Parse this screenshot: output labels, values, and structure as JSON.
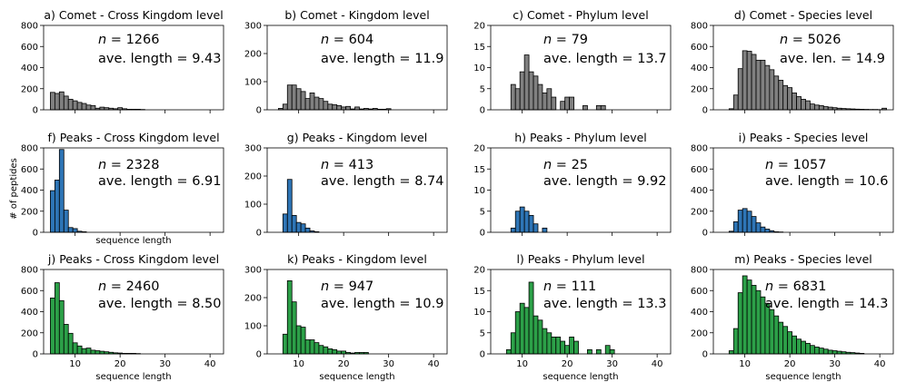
{
  "figure": {
    "ylabel": "# of peptides",
    "colors": {
      "Comet": "#808080",
      "Peaks-blue": "#2e75b6",
      "Peaks-green": "#2ca048",
      "edge": "#000000"
    }
  },
  "chart_data": [
    {
      "type": "bar",
      "title": "a) Comet - Cross Kingdom level",
      "n_label": "n",
      "n_value": "= 1266",
      "len_label": "ave. length = 9.43",
      "xlim": [
        3,
        43
      ],
      "ylim": [
        0,
        800
      ],
      "yticks": [
        0,
        200,
        400,
        600,
        800
      ],
      "xticks": [
        10,
        20,
        30,
        40
      ],
      "show_xticklabels": false,
      "xlabel": "",
      "color": "#808080",
      "x": [
        5,
        6,
        7,
        8,
        9,
        10,
        11,
        12,
        13,
        14,
        15,
        16,
        17,
        18,
        19,
        20,
        21,
        22,
        23,
        24,
        25
      ],
      "values": [
        165,
        155,
        170,
        130,
        100,
        85,
        70,
        60,
        45,
        40,
        15,
        25,
        20,
        15,
        10,
        20,
        10,
        5,
        5,
        5,
        3
      ]
    },
    {
      "type": "bar",
      "title": "b) Comet - Kingdom level",
      "n_label": "n",
      "n_value": "= 604",
      "len_label": "ave. length = 11.9",
      "xlim": [
        3,
        43
      ],
      "ylim": [
        0,
        300
      ],
      "yticks": [
        0,
        100,
        200,
        300
      ],
      "xticks": [
        10,
        20,
        30,
        40
      ],
      "show_xticklabels": false,
      "xlabel": "",
      "color": "#808080",
      "x": [
        6,
        7,
        8,
        9,
        10,
        11,
        12,
        13,
        14,
        15,
        16,
        17,
        18,
        19,
        20,
        21,
        22,
        23,
        24,
        25,
        26,
        27,
        28,
        29,
        30
      ],
      "values": [
        5,
        20,
        88,
        88,
        75,
        65,
        40,
        60,
        45,
        40,
        30,
        20,
        18,
        15,
        10,
        12,
        3,
        10,
        3,
        5,
        3,
        5,
        2,
        2,
        4
      ]
    },
    {
      "type": "bar",
      "title": "c) Comet - Phylum level",
      "n_label": "n",
      "n_value": "= 79",
      "len_label": "ave. length = 13.7",
      "xlim": [
        3,
        43
      ],
      "ylim": [
        0,
        20
      ],
      "yticks": [
        0,
        5,
        10,
        15,
        20
      ],
      "xticks": [
        10,
        20,
        30,
        40
      ],
      "show_xticklabels": false,
      "xlabel": "",
      "color": "#808080",
      "x": [
        8,
        9,
        10,
        11,
        12,
        13,
        14,
        15,
        16,
        17,
        19,
        20,
        21,
        24,
        27,
        28
      ],
      "values": [
        6,
        5,
        9,
        13,
        9,
        8,
        6,
        4,
        5,
        3,
        2,
        3,
        3,
        1,
        1,
        1
      ]
    },
    {
      "type": "bar",
      "title": "d) Comet - Species level",
      "n_label": "n",
      "n_value": "= 5026",
      "len_label": "ave. len. = 14.9",
      "xlim": [
        3,
        43
      ],
      "ylim": [
        0,
        800
      ],
      "yticks": [
        0,
        200,
        400,
        600,
        800
      ],
      "xticks": [
        10,
        20,
        30,
        40
      ],
      "show_xticklabels": false,
      "xlabel": "",
      "color": "#808080",
      "x": [
        7,
        8,
        9,
        10,
        11,
        12,
        13,
        14,
        15,
        16,
        17,
        18,
        19,
        20,
        21,
        22,
        23,
        24,
        25,
        26,
        27,
        28,
        29,
        30,
        31,
        32,
        33,
        34,
        35,
        36,
        37,
        38,
        39,
        40,
        41
      ],
      "values": [
        10,
        140,
        390,
        560,
        555,
        525,
        470,
        470,
        420,
        380,
        320,
        280,
        230,
        210,
        160,
        125,
        100,
        85,
        55,
        45,
        40,
        30,
        25,
        20,
        15,
        12,
        10,
        8,
        6,
        5,
        4,
        3,
        3,
        2,
        15
      ]
    },
    {
      "type": "bar",
      "title": "f) Peaks - Cross Kingdom level",
      "n_label": "n",
      "n_value": "= 2328",
      "len_label": "ave. length = 6.91",
      "xlim": [
        3,
        43
      ],
      "ylim": [
        0,
        800
      ],
      "yticks": [
        0,
        200,
        400,
        600,
        800
      ],
      "xticks": [
        10,
        20,
        30,
        40
      ],
      "show_xticklabels": false,
      "xlabel": "sequence length",
      "color": "#2e75b6",
      "x": [
        5,
        6,
        7,
        8,
        9,
        10,
        11,
        12
      ],
      "values": [
        395,
        495,
        785,
        210,
        45,
        35,
        10,
        5
      ]
    },
    {
      "type": "bar",
      "title": "g) Peaks - Kingdom level",
      "n_label": "n",
      "n_value": "= 413",
      "len_label": "ave. length = 8.74",
      "xlim": [
        3,
        43
      ],
      "ylim": [
        0,
        300
      ],
      "yticks": [
        0,
        100,
        200,
        300
      ],
      "xticks": [
        10,
        20,
        30,
        40
      ],
      "show_xticklabels": false,
      "xlabel": "",
      "color": "#2e75b6",
      "x": [
        7,
        8,
        9,
        10,
        11,
        12,
        13,
        14
      ],
      "values": [
        65,
        188,
        60,
        35,
        30,
        15,
        5,
        2
      ]
    },
    {
      "type": "bar",
      "title": "h) Peaks - Phylum level",
      "n_label": "n",
      "n_value": "= 25",
      "len_label": "ave. length = 9.92",
      "xlim": [
        3,
        43
      ],
      "ylim": [
        0,
        20
      ],
      "yticks": [
        0,
        5,
        10,
        15,
        20
      ],
      "xticks": [
        10,
        20,
        30,
        40
      ],
      "show_xticklabels": false,
      "xlabel": "",
      "color": "#2e75b6",
      "x": [
        8,
        9,
        10,
        11,
        12,
        13,
        15
      ],
      "values": [
        1,
        5,
        6,
        5,
        4,
        2,
        1
      ]
    },
    {
      "type": "bar",
      "title": "i) Peaks - Species level",
      "n_label": "n",
      "n_value": "= 1057",
      "len_label": "ave. length = 10.6",
      "xlim": [
        3,
        43
      ],
      "ylim": [
        0,
        800
      ],
      "yticks": [
        0,
        200,
        400,
        600,
        800
      ],
      "xticks": [
        10,
        20,
        30,
        40
      ],
      "show_xticklabels": false,
      "xlabel": "",
      "color": "#2e75b6",
      "x": [
        7,
        8,
        9,
        10,
        11,
        12,
        13,
        14,
        15,
        16,
        17,
        18
      ],
      "values": [
        10,
        100,
        210,
        225,
        200,
        150,
        90,
        50,
        30,
        15,
        5,
        3
      ]
    },
    {
      "type": "bar",
      "title": "j) Peaks - Cross Kingdom level",
      "n_label": "n",
      "n_value": "= 2460",
      "len_label": "ave. length = 8.50",
      "xlim": [
        3,
        43
      ],
      "ylim": [
        0,
        800
      ],
      "yticks": [
        0,
        200,
        400,
        600,
        800
      ],
      "xticks": [
        10,
        20,
        30,
        40
      ],
      "show_xticklabels": true,
      "xlabel": "sequence length",
      "color": "#2ca048",
      "x": [
        5,
        6,
        7,
        8,
        9,
        10,
        11,
        12,
        13,
        14,
        15,
        16,
        17,
        18,
        19,
        20,
        21,
        22,
        23,
        24
      ],
      "values": [
        530,
        675,
        505,
        280,
        195,
        105,
        75,
        50,
        55,
        35,
        30,
        25,
        20,
        15,
        10,
        8,
        5,
        5,
        5,
        3
      ]
    },
    {
      "type": "bar",
      "title": "k) Peaks - Kingdom level",
      "n_label": "n",
      "n_value": "= 947",
      "len_label": "ave. length = 10.9",
      "xlim": [
        3,
        43
      ],
      "ylim": [
        0,
        300
      ],
      "yticks": [
        0,
        100,
        200,
        300
      ],
      "xticks": [
        10,
        20,
        30,
        40
      ],
      "show_xticklabels": true,
      "xlabel": "sequence length",
      "color": "#2ca048",
      "x": [
        7,
        8,
        9,
        10,
        11,
        12,
        13,
        14,
        15,
        16,
        17,
        18,
        19,
        20,
        21,
        22,
        23,
        24,
        25
      ],
      "values": [
        70,
        260,
        185,
        100,
        95,
        50,
        50,
        40,
        30,
        25,
        18,
        15,
        10,
        10,
        5,
        3,
        5,
        5,
        5
      ]
    },
    {
      "type": "bar",
      "title": "l) Peaks - Phylum level",
      "n_label": "n",
      "n_value": "= 111",
      "len_label": "ave. length = 13.3",
      "xlim": [
        3,
        43
      ],
      "ylim": [
        0,
        20
      ],
      "yticks": [
        0,
        5,
        10,
        15,
        20
      ],
      "xticks": [
        10,
        20,
        30,
        40
      ],
      "show_xticklabels": true,
      "xlabel": "sequence length",
      "color": "#2ca048",
      "x": [
        7,
        8,
        9,
        10,
        11,
        12,
        13,
        14,
        15,
        16,
        17,
        18,
        19,
        20,
        21,
        22,
        25,
        27,
        29,
        30
      ],
      "values": [
        1,
        5,
        10,
        12,
        11,
        17,
        9,
        8,
        6,
        5,
        4,
        4,
        3,
        2,
        4,
        3,
        1,
        1,
        2,
        1
      ]
    },
    {
      "type": "bar",
      "title": "m) Peaks - Species level",
      "n_label": "n",
      "n_value": "= 6831",
      "len_label": "ave. length = 14.3",
      "xlim": [
        3,
        43
      ],
      "ylim": [
        0,
        800
      ],
      "yticks": [
        0,
        200,
        400,
        600,
        800
      ],
      "xticks": [
        10,
        20,
        30,
        40
      ],
      "show_xticklabels": true,
      "xlabel": "sequence length",
      "color": "#2ca048",
      "x": [
        7,
        8,
        9,
        10,
        11,
        12,
        13,
        14,
        15,
        16,
        17,
        18,
        19,
        20,
        21,
        22,
        23,
        24,
        25,
        26,
        27,
        28,
        29,
        30,
        31,
        32,
        33,
        34,
        35,
        36
      ],
      "values": [
        30,
        240,
        580,
        740,
        700,
        650,
        600,
        540,
        480,
        420,
        360,
        300,
        260,
        210,
        170,
        140,
        120,
        100,
        80,
        65,
        55,
        45,
        35,
        30,
        25,
        20,
        15,
        12,
        8,
        5
      ]
    }
  ]
}
